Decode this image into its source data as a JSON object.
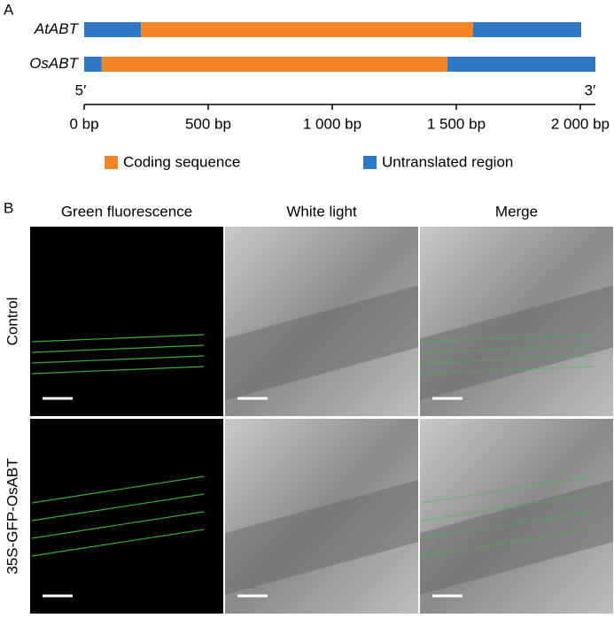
{
  "panel_labels": [
    "A",
    "B"
  ],
  "chart_data": {
    "type": "gene-structure",
    "categories": [
      "AtABT",
      "OsABT"
    ],
    "segments": [
      [
        229,
        1339,
        436
      ],
      [
        71,
        1393,
        597
      ]
    ],
    "series": [
      {
        "name": "Coding sequence",
        "color": "#f28527"
      },
      {
        "name": "Untranslated region",
        "color": "#2f78c4"
      }
    ],
    "end_labels": [
      "5′",
      "3′"
    ],
    "xlim": [
      0,
      2061
    ],
    "xticks": [
      {
        "value": 0,
        "label": "0 bp"
      },
      {
        "value": 500,
        "label": "500 bp"
      },
      {
        "value": 1000,
        "label": "1 000 bp"
      },
      {
        "value": 1500,
        "label": "1 500 bp"
      },
      {
        "value": 2000,
        "label": "2 000 bp"
      }
    ]
  },
  "panel_b": {
    "columns": [
      "Green fluorescence",
      "White light",
      "Merge"
    ],
    "rows": [
      "Control",
      "35S-GFP-OsABT"
    ]
  }
}
